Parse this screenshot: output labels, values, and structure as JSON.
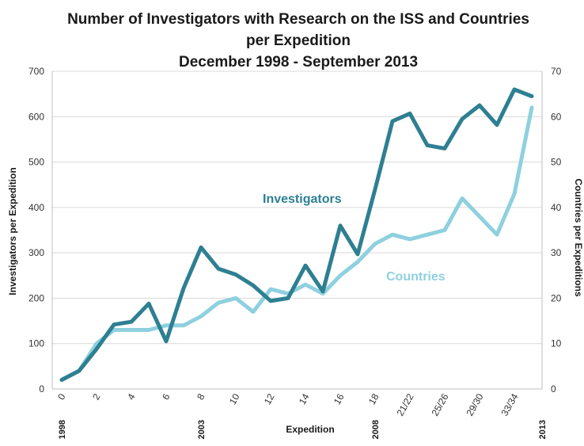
{
  "chart_data": {
    "type": "line",
    "title": [
      "Number of Investigators with Research on the ISS and Countries",
      "per Expedition",
      "December 1998 - September 2013"
    ],
    "xlabel": "Expedition",
    "ylabel_left": "Investigators per Expedition",
    "ylabel_right": "Countries per Expeditions",
    "ylim_left": [
      0,
      700
    ],
    "ylim_right": [
      0,
      70
    ],
    "yticks_left": [
      "0",
      "100",
      "200",
      "300",
      "400",
      "500",
      "600",
      "700"
    ],
    "yticks_right": [
      "0",
      "10",
      "20",
      "30",
      "40",
      "50",
      "60",
      "70"
    ],
    "x_tick_labels": [
      "0",
      "2",
      "4",
      "6",
      "8",
      "10",
      "12",
      "14",
      "16",
      "18",
      "21/22",
      "25/26",
      "29/30",
      "33/34"
    ],
    "year_labels": [
      "1998",
      "2003",
      "2008",
      "2013"
    ],
    "categories": [
      "0",
      "1",
      "2",
      "3",
      "4",
      "5",
      "6",
      "7",
      "8",
      "9",
      "10",
      "11",
      "12",
      "13",
      "14",
      "15",
      "16",
      "17",
      "18",
      "19",
      "21/22",
      "23/24",
      "25/26",
      "27/28",
      "29/30",
      "31/32",
      "33/34",
      "35/36"
    ],
    "series": [
      {
        "name": "Investigators",
        "axis": "left",
        "color": "#2e7f92",
        "values": [
          20,
          40,
          88,
          142,
          148,
          188,
          105,
          222,
          312,
          265,
          252,
          228,
          194,
          200,
          272,
          215,
          360,
          297,
          440,
          590,
          607,
          537,
          530,
          595,
          625,
          582,
          660,
          645
        ]
      },
      {
        "name": "Countries",
        "axis": "right",
        "color": "#8fd0df",
        "values": [
          2,
          4,
          10,
          13,
          13,
          13,
          14,
          14,
          16,
          19,
          20,
          17,
          22,
          21,
          23,
          21,
          25,
          28,
          32,
          34,
          33,
          34,
          35,
          42,
          38,
          34,
          43,
          62
        ]
      }
    ]
  }
}
